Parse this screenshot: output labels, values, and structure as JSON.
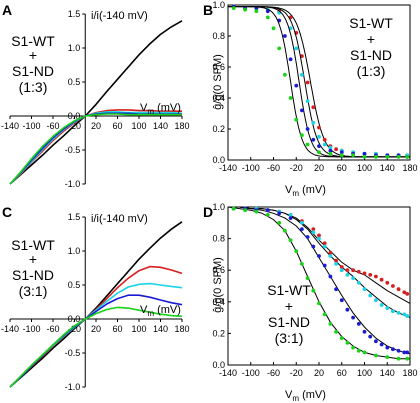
{
  "colors": {
    "black": "#000000",
    "red": "#d81e1e",
    "cyan": "#19d4e6",
    "blue": "#1a1ad4",
    "green": "#16d316",
    "frame": "#000000"
  },
  "chart_data": [
    {
      "panel": "A",
      "type": "line",
      "title": "",
      "ylabel": "i/i(-140 mV)",
      "xlabel": "Vm (mV)",
      "xlim": [
        -140,
        180
      ],
      "ylim": [
        -1.0,
        1.5
      ],
      "xticks": [
        "-140",
        "-100",
        "-60",
        "-20",
        "20",
        "60",
        "100",
        "140",
        "180"
      ],
      "yticks": [
        "-1.0",
        "-0.5",
        "0.0",
        "0.5",
        "1.0",
        "1.5"
      ],
      "annotation": [
        "S1-WT",
        "+",
        "S1-ND",
        "(1:3)"
      ],
      "series": [
        {
          "color": "black",
          "x": [
            -140,
            -120,
            -100,
            -80,
            -60,
            -40,
            -20,
            0,
            20,
            40,
            60,
            80,
            100,
            120,
            140,
            160,
            180
          ],
          "y": [
            -1.0,
            -0.86,
            -0.72,
            -0.58,
            -0.43,
            -0.29,
            -0.14,
            0.0,
            0.17,
            0.36,
            0.54,
            0.72,
            0.9,
            1.06,
            1.2,
            1.31,
            1.4
          ]
        },
        {
          "color": "red",
          "x": [
            -140,
            -120,
            -100,
            -80,
            -60,
            -40,
            -20,
            0,
            20,
            40,
            60,
            80,
            100,
            120,
            140,
            160,
            180
          ],
          "y": [
            -1.0,
            -0.85,
            -0.68,
            -0.52,
            -0.36,
            -0.22,
            -0.1,
            0.0,
            0.05,
            0.08,
            0.09,
            0.09,
            0.08,
            0.08,
            0.07,
            0.07,
            0.07
          ]
        },
        {
          "color": "cyan",
          "x": [
            -140,
            -120,
            -100,
            -80,
            -60,
            -40,
            -20,
            0,
            20,
            40,
            60,
            80,
            100,
            120,
            140,
            160,
            180
          ],
          "y": [
            -1.0,
            -0.84,
            -0.67,
            -0.5,
            -0.34,
            -0.2,
            -0.09,
            0.0,
            0.04,
            0.06,
            0.06,
            0.05,
            0.05,
            0.05,
            0.05,
            0.05,
            0.04
          ]
        },
        {
          "color": "blue",
          "x": [
            -140,
            -120,
            -100,
            -80,
            -60,
            -40,
            -20,
            0,
            20,
            40,
            60,
            80,
            100,
            120,
            140,
            160,
            180
          ],
          "y": [
            -1.0,
            -0.83,
            -0.65,
            -0.48,
            -0.32,
            -0.19,
            -0.08,
            0.0,
            0.03,
            0.04,
            0.04,
            0.04,
            0.03,
            0.03,
            0.03,
            0.03,
            0.03
          ]
        },
        {
          "color": "green",
          "x": [
            -140,
            -120,
            -100,
            -80,
            -60,
            -40,
            -20,
            0,
            20,
            40,
            60,
            80,
            100,
            120,
            140,
            160,
            180
          ],
          "y": [
            -1.0,
            -0.82,
            -0.63,
            -0.45,
            -0.3,
            -0.17,
            -0.07,
            0.0,
            0.02,
            0.03,
            0.03,
            0.02,
            0.02,
            0.02,
            0.02,
            0.02,
            0.02
          ]
        }
      ]
    },
    {
      "panel": "B",
      "type": "scatter",
      "title": "",
      "ylabel": "ĝ/ĝ(0 SPM)",
      "xlabel": "Vm (mV)",
      "xlim": [
        -140,
        180
      ],
      "ylim": [
        0.0,
        1.0
      ],
      "xticks": [
        "-140",
        "-100",
        "-60",
        "-20",
        "20",
        "60",
        "100",
        "140",
        "180"
      ],
      "yticks": [
        "0.0",
        "0.2",
        "0.4",
        "0.6",
        "0.8",
        "1.0"
      ],
      "annotation": [
        "S1-WT",
        "+",
        "S1-ND",
        "(1:3)"
      ],
      "series": [
        {
          "color": "red",
          "fit": {
            "v50": 5,
            "k": 12
          },
          "x": [
            -130,
            -110,
            -90,
            -70,
            -50,
            -30,
            -20,
            -10,
            0,
            10,
            20,
            30,
            40,
            50,
            60,
            80,
            100,
            120,
            140,
            160,
            175
          ],
          "y": [
            0.99,
            0.98,
            0.98,
            0.97,
            0.96,
            0.92,
            0.82,
            0.67,
            0.5,
            0.34,
            0.21,
            0.13,
            0.09,
            0.07,
            0.06,
            0.05,
            0.04,
            0.04,
            0.03,
            0.03,
            0.03
          ]
        },
        {
          "color": "cyan",
          "fit": {
            "v50": -5,
            "k": 11
          },
          "x": [
            -130,
            -110,
            -90,
            -70,
            -50,
            -30,
            -20,
            -10,
            0,
            10,
            20,
            30,
            40,
            60,
            80,
            100,
            120,
            140,
            160,
            175
          ],
          "y": [
            0.99,
            0.98,
            0.98,
            0.97,
            0.95,
            0.85,
            0.72,
            0.55,
            0.38,
            0.24,
            0.15,
            0.1,
            0.08,
            0.06,
            0.05,
            0.04,
            0.04,
            0.03,
            0.03,
            0.03
          ]
        },
        {
          "color": "blue",
          "fit": {
            "v50": -15,
            "k": 10
          },
          "x": [
            -130,
            -110,
            -90,
            -70,
            -50,
            -40,
            -30,
            -20,
            -10,
            0,
            10,
            20,
            40,
            60,
            80,
            100,
            120,
            140,
            160,
            175
          ],
          "y": [
            0.99,
            0.98,
            0.98,
            0.96,
            0.9,
            0.8,
            0.65,
            0.48,
            0.32,
            0.2,
            0.13,
            0.09,
            0.06,
            0.05,
            0.04,
            0.04,
            0.03,
            0.03,
            0.03,
            0.02
          ]
        },
        {
          "color": "green",
          "fit": {
            "v50": -30,
            "k": 10
          },
          "x": [
            -130,
            -110,
            -90,
            -70,
            -60,
            -50,
            -40,
            -30,
            -20,
            -10,
            0,
            20,
            40,
            60,
            80,
            100,
            120,
            140,
            160,
            175
          ],
          "y": [
            0.98,
            0.97,
            0.96,
            0.92,
            0.85,
            0.72,
            0.55,
            0.4,
            0.26,
            0.16,
            0.1,
            0.05,
            0.04,
            0.03,
            0.03,
            0.02,
            0.02,
            0.02,
            0.02,
            0.02
          ]
        }
      ]
    },
    {
      "panel": "C",
      "type": "line",
      "title": "",
      "ylabel": "i/i(-140 mV)",
      "xlabel": "Vm (mV)",
      "xlim": [
        -140,
        180
      ],
      "ylim": [
        -1.0,
        1.5
      ],
      "xticks": [
        "-140",
        "-100",
        "-60",
        "-20",
        "20",
        "60",
        "100",
        "140",
        "180"
      ],
      "yticks": [
        "-1.0",
        "-0.5",
        "0.0",
        "0.5",
        "1.0",
        "1.5"
      ],
      "annotation": [
        "S1-WT",
        "+",
        "S1-ND",
        "(3:1)"
      ],
      "series": [
        {
          "color": "black",
          "x": [
            -140,
            -120,
            -100,
            -80,
            -60,
            -40,
            -20,
            0,
            20,
            40,
            60,
            80,
            100,
            120,
            140,
            160,
            180
          ],
          "y": [
            -1.0,
            -0.86,
            -0.72,
            -0.58,
            -0.43,
            -0.29,
            -0.14,
            0.0,
            0.16,
            0.34,
            0.52,
            0.7,
            0.88,
            1.04,
            1.19,
            1.32,
            1.43
          ]
        },
        {
          "color": "red",
          "x": [
            -140,
            -120,
            -100,
            -80,
            -60,
            -40,
            -20,
            0,
            20,
            40,
            60,
            80,
            100,
            120,
            140,
            160,
            180
          ],
          "y": [
            -1.0,
            -0.85,
            -0.7,
            -0.55,
            -0.4,
            -0.26,
            -0.12,
            0.0,
            0.14,
            0.3,
            0.46,
            0.6,
            0.71,
            0.77,
            0.76,
            0.72,
            0.67
          ]
        },
        {
          "color": "cyan",
          "x": [
            -140,
            -120,
            -100,
            -80,
            -60,
            -40,
            -20,
            0,
            20,
            40,
            60,
            80,
            100,
            120,
            140,
            160,
            180
          ],
          "y": [
            -1.0,
            -0.85,
            -0.69,
            -0.54,
            -0.39,
            -0.25,
            -0.12,
            0.0,
            0.13,
            0.26,
            0.38,
            0.47,
            0.51,
            0.52,
            0.5,
            0.48,
            0.46
          ]
        },
        {
          "color": "blue",
          "x": [
            -140,
            -120,
            -100,
            -80,
            -60,
            -40,
            -20,
            0,
            20,
            40,
            60,
            80,
            100,
            120,
            140,
            160,
            180
          ],
          "y": [
            -1.0,
            -0.85,
            -0.69,
            -0.54,
            -0.38,
            -0.24,
            -0.11,
            0.0,
            0.11,
            0.22,
            0.3,
            0.35,
            0.35,
            0.32,
            0.28,
            0.24,
            0.21
          ]
        },
        {
          "color": "green",
          "x": [
            -140,
            -120,
            -100,
            -80,
            -60,
            -40,
            -20,
            0,
            20,
            40,
            60,
            80,
            100,
            120,
            140,
            160,
            180
          ],
          "y": [
            -1.0,
            -0.84,
            -0.68,
            -0.53,
            -0.38,
            -0.23,
            -0.1,
            0.0,
            0.08,
            0.14,
            0.17,
            0.16,
            0.13,
            0.1,
            0.07,
            0.05,
            0.04
          ]
        }
      ]
    },
    {
      "panel": "D",
      "type": "scatter",
      "title": "",
      "ylabel": "ĝ/ĝ(0 SPM)",
      "xlabel": "Vm (mV)",
      "xlim": [
        -140,
        180
      ],
      "ylim": [
        0.0,
        1.0
      ],
      "xticks": [
        "-140",
        "-100",
        "-60",
        "-20",
        "20",
        "60",
        "100",
        "140",
        "180"
      ],
      "yticks": [
        "0.0",
        "0.2",
        "0.4",
        "0.6",
        "0.8",
        "1.0"
      ],
      "annotation": [
        "S1-WT",
        "+",
        "S1-ND",
        "(3:1)"
      ],
      "series": [
        {
          "color": "red",
          "x": [
            -130,
            -110,
            -90,
            -70,
            -50,
            -30,
            -10,
            10,
            20,
            30,
            40,
            50,
            60,
            70,
            80,
            90,
            100,
            110,
            120,
            130,
            140,
            150,
            160,
            170,
            175
          ],
          "y": [
            0.99,
            0.99,
            0.99,
            0.98,
            0.97,
            0.95,
            0.91,
            0.86,
            0.82,
            0.77,
            0.71,
            0.66,
            0.62,
            0.6,
            0.6,
            0.59,
            0.58,
            0.57,
            0.56,
            0.54,
            0.52,
            0.5,
            0.48,
            0.46,
            0.45
          ]
        },
        {
          "color": "cyan",
          "x": [
            -130,
            -110,
            -90,
            -70,
            -50,
            -30,
            -10,
            10,
            20,
            30,
            40,
            50,
            60,
            70,
            80,
            90,
            100,
            110,
            120,
            130,
            140,
            150,
            160,
            170,
            175
          ],
          "y": [
            0.99,
            0.99,
            0.99,
            0.98,
            0.97,
            0.95,
            0.9,
            0.84,
            0.8,
            0.75,
            0.69,
            0.64,
            0.6,
            0.57,
            0.55,
            0.52,
            0.48,
            0.44,
            0.41,
            0.38,
            0.36,
            0.34,
            0.33,
            0.32,
            0.31
          ]
        },
        {
          "color": "blue",
          "x": [
            -130,
            -110,
            -90,
            -70,
            -50,
            -30,
            -10,
            0,
            10,
            20,
            30,
            40,
            50,
            60,
            70,
            80,
            90,
            100,
            110,
            120,
            130,
            140,
            150,
            160,
            170,
            175
          ],
          "y": [
            0.99,
            0.99,
            0.98,
            0.98,
            0.96,
            0.93,
            0.86,
            0.81,
            0.75,
            0.69,
            0.63,
            0.56,
            0.48,
            0.41,
            0.35,
            0.3,
            0.26,
            0.21,
            0.18,
            0.15,
            0.13,
            0.11,
            0.1,
            0.09,
            0.08,
            0.08
          ]
        },
        {
          "color": "green",
          "x": [
            -130,
            -110,
            -90,
            -70,
            -50,
            -40,
            -30,
            -20,
            -10,
            0,
            10,
            20,
            30,
            40,
            50,
            60,
            70,
            80,
            90,
            100,
            120,
            140,
            160,
            175
          ],
          "y": [
            0.99,
            0.98,
            0.97,
            0.95,
            0.9,
            0.85,
            0.79,
            0.72,
            0.64,
            0.55,
            0.47,
            0.39,
            0.32,
            0.26,
            0.21,
            0.17,
            0.14,
            0.11,
            0.09,
            0.08,
            0.06,
            0.05,
            0.04,
            0.04
          ]
        }
      ],
      "fits": [
        {
          "color": "black",
          "x": [
            -140,
            -120,
            -100,
            -80,
            -60,
            -40,
            -20,
            0,
            20,
            40,
            60,
            80,
            100,
            120,
            140,
            160,
            180
          ],
          "y": [
            1.0,
            1.0,
            0.99,
            0.99,
            0.98,
            0.96,
            0.93,
            0.87,
            0.79,
            0.72,
            0.65,
            0.6,
            0.57,
            0.52,
            0.47,
            0.43,
            0.39
          ]
        },
        {
          "color": "black",
          "x": [
            -140,
            -120,
            -100,
            -80,
            -60,
            -40,
            -20,
            0,
            20,
            40,
            60,
            80,
            100,
            120,
            140,
            160,
            180
          ],
          "y": [
            1.0,
            1.0,
            0.99,
            0.99,
            0.98,
            0.96,
            0.92,
            0.86,
            0.77,
            0.69,
            0.62,
            0.56,
            0.49,
            0.43,
            0.37,
            0.33,
            0.3
          ]
        },
        {
          "color": "black",
          "x": [
            -140,
            -120,
            -100,
            -80,
            -60,
            -40,
            -20,
            0,
            20,
            40,
            60,
            80,
            100,
            120,
            140,
            160,
            180
          ],
          "y": [
            1.0,
            1.0,
            0.99,
            0.98,
            0.96,
            0.93,
            0.88,
            0.8,
            0.68,
            0.56,
            0.44,
            0.33,
            0.24,
            0.17,
            0.12,
            0.09,
            0.07
          ]
        },
        {
          "color": "black",
          "x": [
            -140,
            -120,
            -100,
            -80,
            -60,
            -40,
            -20,
            0,
            20,
            40,
            60,
            80,
            100,
            120,
            140,
            160,
            180
          ],
          "y": [
            1.0,
            0.99,
            0.98,
            0.96,
            0.92,
            0.85,
            0.72,
            0.56,
            0.4,
            0.27,
            0.18,
            0.12,
            0.08,
            0.06,
            0.05,
            0.04,
            0.04
          ]
        }
      ]
    }
  ]
}
